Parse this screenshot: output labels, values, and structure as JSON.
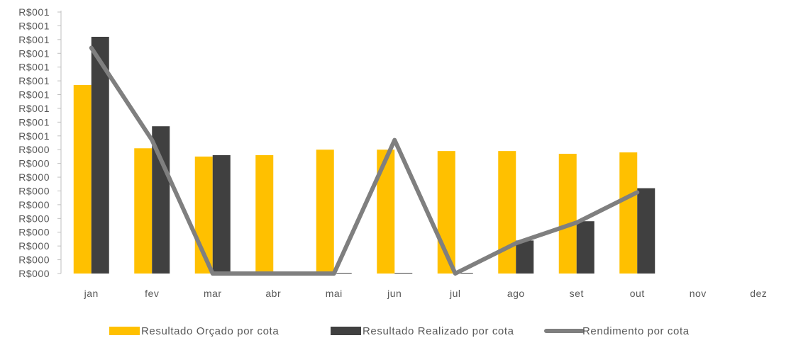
{
  "chart_data": {
    "type": "bar",
    "categories": [
      "jan",
      "fev",
      "mar",
      "abr",
      "mai",
      "jun",
      "jul",
      "ago",
      "set",
      "out",
      "nov",
      "dez"
    ],
    "y_tick_labels": [
      "R$000",
      "R$000",
      "R$000",
      "R$000",
      "R$000",
      "R$000",
      "R$000",
      "R$000",
      "R$000",
      "R$000",
      "R$001",
      "R$001",
      "R$001",
      "R$001",
      "R$001",
      "R$001",
      "R$001",
      "R$001",
      "R$001",
      "R$001"
    ],
    "ylim": [
      0,
      1.9
    ],
    "series": [
      {
        "name": "Resultado Orçado por cota",
        "kind": "bar",
        "color": "#FFC000",
        "values": [
          1.37,
          0.91,
          0.85,
          0.86,
          0.9,
          0.9,
          0.89,
          0.89,
          0.87,
          0.88,
          null,
          null
        ]
      },
      {
        "name": "Resultado Realizado por cota",
        "kind": "bar",
        "color": "#404040",
        "values": [
          1.72,
          1.07,
          0.86,
          0.0,
          0.004,
          0.004,
          0.004,
          0.24,
          0.38,
          0.62,
          null,
          null
        ]
      },
      {
        "name": "Rendimento por cota",
        "kind": "line",
        "color": "#7F7F7F",
        "values": [
          1.64,
          0.97,
          0.0,
          0.0,
          0.0,
          0.97,
          0.0,
          0.22,
          0.37,
          0.59,
          null,
          null
        ]
      }
    ],
    "legend_position": "bottom",
    "grid": false
  }
}
